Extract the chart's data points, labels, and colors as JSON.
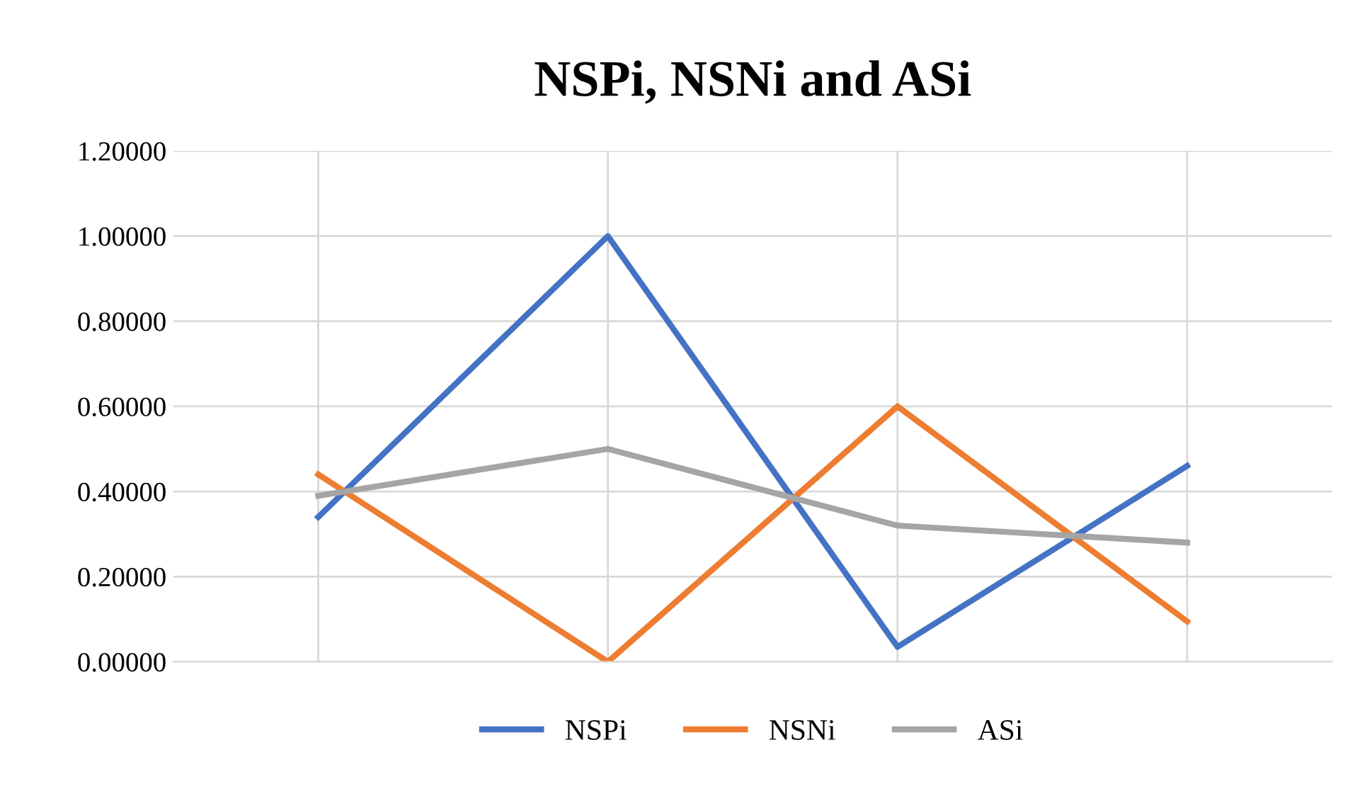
{
  "chart_data": {
    "type": "line",
    "title": "NSPi, NSNi and ASi",
    "categories": [
      null,
      null,
      null,
      null
    ],
    "series": [
      {
        "name": "NSPi",
        "color": "#4472c4",
        "values": [
          0.34,
          1.0,
          0.035,
          0.46
        ]
      },
      {
        "name": "NSNi",
        "color": "#ed7d31",
        "values": [
          0.44,
          0.0,
          0.6,
          0.095
        ]
      },
      {
        "name": "ASi",
        "color": "#a5a5a5",
        "values": [
          0.39,
          0.5,
          0.32,
          0.28
        ]
      }
    ],
    "ylim": [
      0,
      1.2
    ],
    "yticks": [
      {
        "value": 0,
        "label": "0.00000"
      },
      {
        "value": 0.2,
        "label": "0.20000"
      },
      {
        "value": 0.4,
        "label": "0.40000"
      },
      {
        "value": 0.6,
        "label": "0.60000"
      },
      {
        "value": 0.8,
        "label": "0.80000"
      },
      {
        "value": 1.0,
        "label": "1.00000"
      },
      {
        "value": 1.2,
        "label": "1.20000"
      }
    ],
    "grid": true,
    "legend": "bottom",
    "marker": "none",
    "line_style": "solid"
  }
}
